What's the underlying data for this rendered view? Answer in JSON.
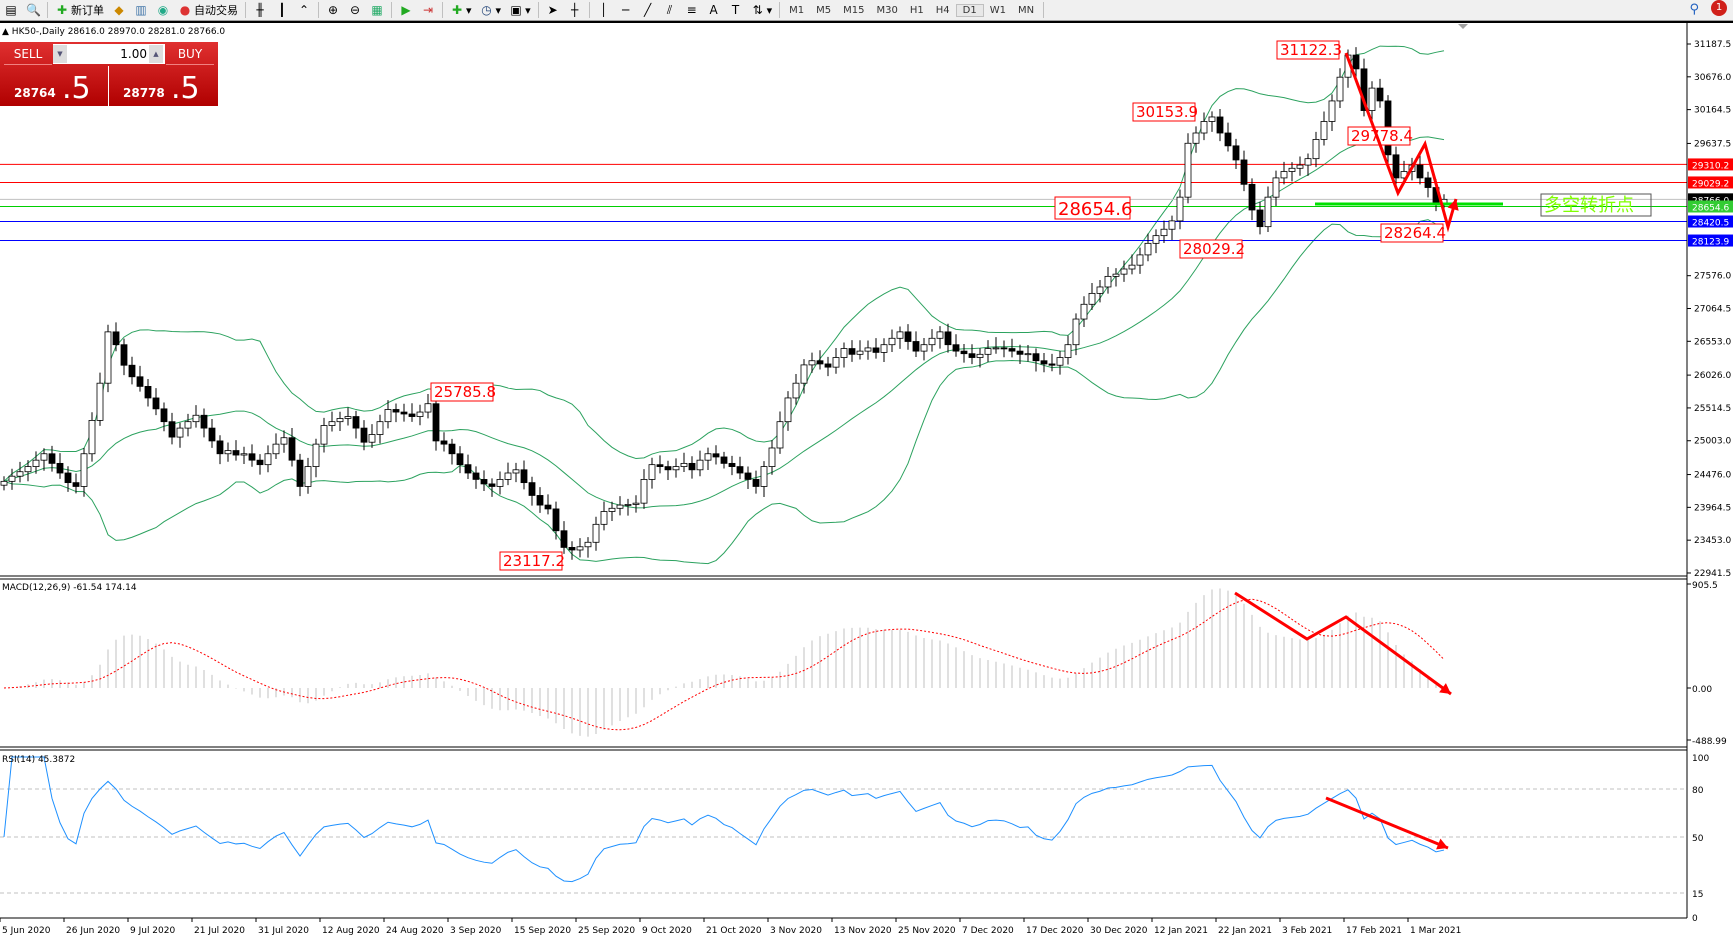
{
  "toolbar": {
    "new_order": "新订单",
    "auto_trading": "自动交易",
    "timeframes": [
      "M1",
      "M5",
      "M15",
      "M30",
      "H1",
      "H4",
      "D1",
      "W1",
      "MN"
    ],
    "active_timeframe": "D1",
    "notifications": "1"
  },
  "header": {
    "symbol": "HK50-,Daily",
    "ohlc": "28616.0 28970.0 28281.0 28766.0"
  },
  "trade_panel": {
    "sell": "SELL",
    "buy": "BUY",
    "lot": "1.00",
    "bid_main": "28764",
    "bid_frac": ".5",
    "ask_main": "28778",
    "ask_frac": ".5"
  },
  "colors": {
    "bull": "#ffffff",
    "bear": "#000000",
    "bands": "#2ca25f",
    "annotation": "#ff0000",
    "support_green": "#00e000",
    "blue_line": "#0000ff",
    "rsi": "#1e90ff",
    "macd_hist": "#c0c0c0"
  },
  "price_axis": [
    "31187.5",
    "30676.0",
    "30164.5",
    "29637.5",
    "27576.0",
    "27064.5",
    "26553.0",
    "26026.0",
    "25514.5",
    "25003.0",
    "24476.0",
    "23964.5",
    "23453.0",
    "22941.5"
  ],
  "levels": [
    {
      "price": "29310.2",
      "color": "#ff0000"
    },
    {
      "price": "29029.2",
      "color": "#ff0000"
    },
    {
      "price": "28766.0",
      "color": "#000000"
    },
    {
      "price": "28654.6",
      "color": "#33cc33"
    },
    {
      "price": "28420.5",
      "color": "#0000ff"
    },
    {
      "price": "28123.9",
      "color": "#0000ff"
    }
  ],
  "annotations": [
    "31122.3",
    "30153.9",
    "29778.4",
    "28654.6",
    "28029.2",
    "28264.4",
    "25785.8",
    "23117.2"
  ],
  "turning_point_label": "多空转折点",
  "macd": {
    "title": "MACD(12,26,9) -61.54 174.14",
    "axis": [
      "905.5",
      "0.00",
      "-488.99"
    ]
  },
  "rsi": {
    "title": "RSI(14) 45.3872",
    "axis": [
      "100",
      "80",
      "50",
      "15",
      "0"
    ]
  },
  "dates": [
    "5 Jun 2020",
    "26 Jun 2020",
    "9 Jul 2020",
    "21 Jul 2020",
    "31 Jul 2020",
    "12 Aug 2020",
    "24 Aug 2020",
    "3 Sep 2020",
    "15 Sep 2020",
    "25 Sep 2020",
    "9 Oct 2020",
    "21 Oct 2020",
    "3 Nov 2020",
    "13 Nov 2020",
    "25 Nov 2020",
    "7 Dec 2020",
    "17 Dec 2020",
    "30 Dec 2020",
    "12 Jan 2021",
    "22 Jan 2021",
    "3 Feb 2021",
    "17 Feb 2021",
    "1 Mar 2021"
  ],
  "chart_data": {
    "type": "candlestick",
    "closes": [
      24370,
      24450,
      24520,
      24600,
      24700,
      24800,
      24650,
      24500,
      24350,
      24290,
      24800,
      25320,
      25900,
      26700,
      26500,
      26180,
      26000,
      25850,
      25670,
      25500,
      25300,
      25060,
      25200,
      25300,
      25400,
      25200,
      25000,
      24800,
      24850,
      24780,
      24800,
      24700,
      24630,
      24800,
      24950,
      25050,
      24700,
      24290,
      24600,
      24950,
      25240,
      25300,
      25350,
      25380,
      25200,
      24980,
      25100,
      25300,
      25490,
      25450,
      25420,
      25380,
      25450,
      25580,
      25000,
      24950,
      24800,
      24630,
      24500,
      24400,
      24330,
      24290,
      24400,
      24500,
      24550,
      24350,
      24150,
      24000,
      23940,
      23600,
      23340,
      23300,
      23350,
      23420,
      23700,
      23900,
      23950,
      24000,
      24010,
      24030,
      24400,
      24630,
      24600,
      24550,
      24600,
      24650,
      24550,
      24700,
      24800,
      24750,
      24650,
      24600,
      24500,
      24400,
      24290,
      24600,
      24890,
      25300,
      25670,
      25900,
      26185,
      26250,
      26200,
      26150,
      26300,
      26440,
      26350,
      26400,
      26450,
      26380,
      26500,
      26600,
      26700,
      26550,
      26400,
      26500,
      26600,
      26700,
      26500,
      26400,
      26360,
      26300,
      26350,
      26440,
      26450,
      26440,
      26400,
      26350,
      26360,
      26250,
      26200,
      26180,
      26300,
      26500,
      26900,
      27130,
      27300,
      27400,
      27565,
      27600,
      27680,
      27740,
      27900,
      28080,
      28200,
      28300,
      28430,
      28800,
      29640,
      29800,
      29980,
      30050,
      29800,
      29600,
      29380,
      29000,
      28600,
      28340,
      28800,
      29100,
      29200,
      29250,
      29300,
      29400,
      29700,
      29980,
      30300,
      30670,
      31015,
      30800,
      30150,
      30500,
      30300,
      29460,
      29100,
      29200,
      29300,
      29100,
      28950,
      28700,
      28766
    ],
    "ylim": [
      22941.5,
      31187.5
    ]
  }
}
